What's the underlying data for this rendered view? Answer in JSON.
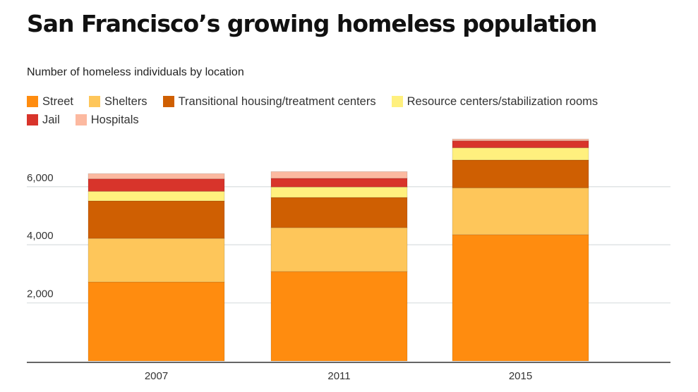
{
  "chart_data": {
    "type": "bar",
    "stacked": true,
    "title": "San Francisco’s growing homeless population",
    "subtitle": "Number of homeless individuals by location",
    "xlabel": "",
    "ylabel": "",
    "categories": [
      "2007",
      "2011",
      "2015"
    ],
    "ylim": [
      0,
      8000
    ],
    "yticks": [
      2000,
      4000,
      6000
    ],
    "ytick_labels": [
      "2,000",
      "4,000",
      "6,000"
    ],
    "grid": true,
    "legend_placement": "top-left",
    "series": [
      {
        "name": "Street",
        "color": "#ff8c0f",
        "values": [
          2720,
          3080,
          4350
        ]
      },
      {
        "name": "Shelters",
        "color": "#fec65a",
        "values": [
          1500,
          1510,
          1610
        ]
      },
      {
        "name": "Transitional housing/treatment centers",
        "color": "#cf5f02",
        "values": [
          1290,
          1040,
          960
        ]
      },
      {
        "name": "Resource centers/stabilization rooms",
        "color": "#fff07e",
        "values": [
          330,
          360,
          420
        ]
      },
      {
        "name": "Jail",
        "color": "#d8342b",
        "values": [
          430,
          300,
          240
        ]
      },
      {
        "name": "Hospitals",
        "color": "#fcb9a0",
        "values": [
          180,
          230,
          60
        ]
      }
    ]
  }
}
